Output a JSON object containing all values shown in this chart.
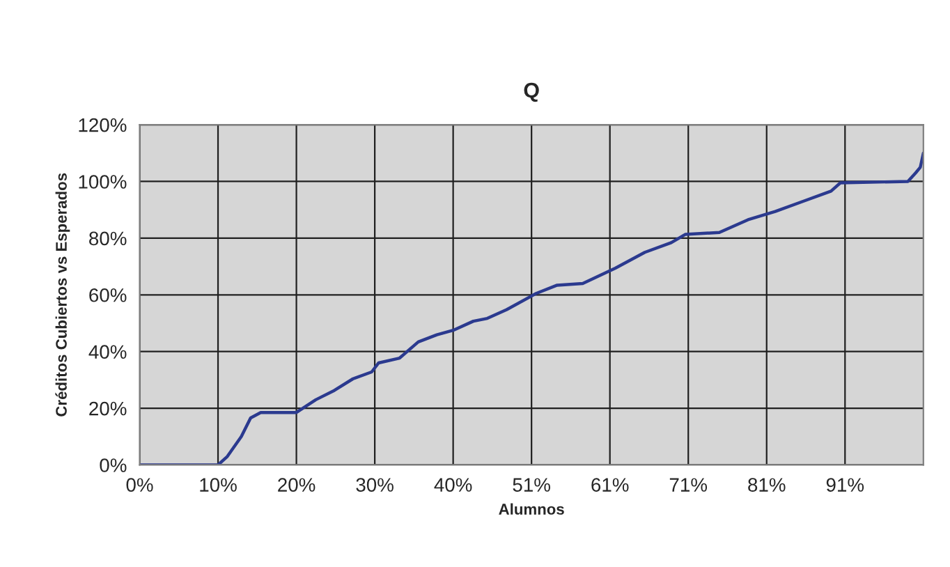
{
  "chart_data": {
    "type": "line",
    "title": "Q",
    "xlabel": "Alumnos",
    "ylabel": "Créditos Cubiertos vs Esperados",
    "xlim": [
      0,
      101
    ],
    "ylim": [
      0,
      120
    ],
    "xticks": [
      {
        "value": 0,
        "label": "0%"
      },
      {
        "value": 10.1,
        "label": "10%"
      },
      {
        "value": 20.2,
        "label": "20%"
      },
      {
        "value": 30.3,
        "label": "30%"
      },
      {
        "value": 40.4,
        "label": "40%"
      },
      {
        "value": 50.5,
        "label": "51%"
      },
      {
        "value": 60.6,
        "label": "61%"
      },
      {
        "value": 70.7,
        "label": "71%"
      },
      {
        "value": 80.8,
        "label": "81%"
      },
      {
        "value": 90.9,
        "label": "91%"
      }
    ],
    "yticks": [
      {
        "value": 0,
        "label": "0%"
      },
      {
        "value": 20,
        "label": "20%"
      },
      {
        "value": 40,
        "label": "40%"
      },
      {
        "value": 60,
        "label": "60%"
      },
      {
        "value": 80,
        "label": "80%"
      },
      {
        "value": 100,
        "label": "100%"
      },
      {
        "value": 120,
        "label": "120%"
      }
    ],
    "grid": true,
    "marker": "none",
    "line_style": "solid",
    "series": [
      {
        "color": "#2b3a8f",
        "x": [
          0,
          10.1,
          11.3,
          13.1,
          14.3,
          15.6,
          20.2,
          22.7,
          25.1,
          27.5,
          29.9,
          30.8,
          33.5,
          35.9,
          38.3,
          40.4,
          43.0,
          44.8,
          47.3,
          51.1,
          53.8,
          57.1,
          61.3,
          65.1,
          68.5,
          70.3,
          74.7,
          78.4,
          81.9,
          85.5,
          89.1,
          90.3,
          99.0,
          100.0,
          100.6,
          101
        ],
        "values": [
          0,
          0,
          3,
          10,
          16.6,
          18.5,
          18.5,
          23,
          26.3,
          30.4,
          32.8,
          36,
          37.7,
          43.4,
          45.9,
          47.5,
          50.7,
          51.7,
          54.8,
          60.5,
          63.4,
          64,
          69.4,
          75,
          78.4,
          81.3,
          82,
          86.5,
          89.4,
          93,
          96.6,
          99.5,
          100,
          103,
          105,
          110
        ]
      }
    ]
  }
}
